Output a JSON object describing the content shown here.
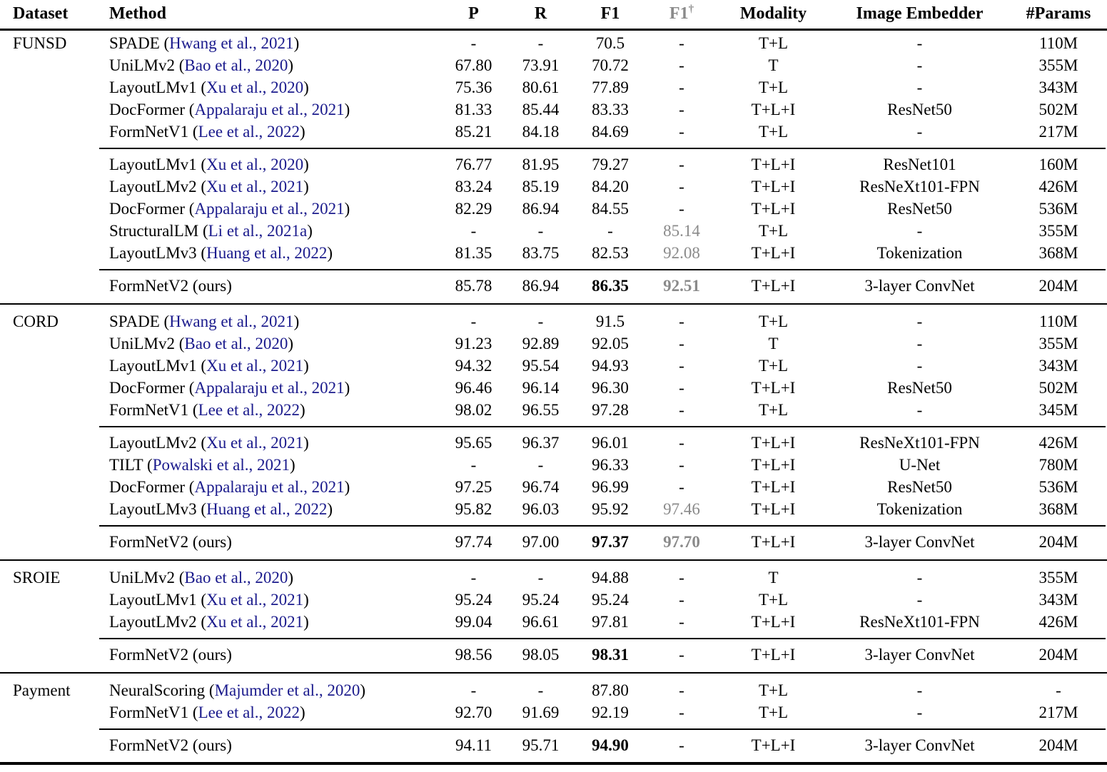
{
  "colors": {
    "citation_blue": "#1a1a8c",
    "muted_gray": "#8a8a8a",
    "text_black": "#000000",
    "background": "#ffffff"
  },
  "header": {
    "dataset": "Dataset",
    "method": "Method",
    "p": "P",
    "r": "R",
    "f1": "F1",
    "f1_dagger_base": "F1",
    "f1_dagger_sup": "†",
    "modality": "Modality",
    "image_embedder": "Image Embedder",
    "params": "#Params"
  },
  "sections": [
    {
      "dataset": "FUNSD",
      "groups": [
        {
          "rows": [
            {
              "method": "SPADE",
              "cite": "Hwang et al., 2021",
              "p": "-",
              "r": "-",
              "f1": "70.5",
              "f1d": "-",
              "modality": "T+L",
              "embedder": "-",
              "params": "110M"
            },
            {
              "method": "UniLMv2",
              "cite": "Bao et al., 2020",
              "p": "67.80",
              "r": "73.91",
              "f1": "70.72",
              "f1d": "-",
              "modality": "T",
              "embedder": "-",
              "params": "355M"
            },
            {
              "method": "LayoutLMv1",
              "cite": "Xu et al., 2020",
              "p": "75.36",
              "r": "80.61",
              "f1": "77.89",
              "f1d": "-",
              "modality": "T+L",
              "embedder": "-",
              "params": "343M"
            },
            {
              "method": "DocFormer",
              "cite": "Appalaraju et al., 2021",
              "p": "81.33",
              "r": "85.44",
              "f1": "83.33",
              "f1d": "-",
              "modality": "T+L+I",
              "embedder": "ResNet50",
              "params": "502M"
            },
            {
              "method": "FormNetV1",
              "cite": "Lee et al., 2022",
              "p": "85.21",
              "r": "84.18",
              "f1": "84.69",
              "f1d": "-",
              "modality": "T+L",
              "embedder": "-",
              "params": "217M"
            }
          ]
        },
        {
          "rows": [
            {
              "method": "LayoutLMv1",
              "cite": "Xu et al., 2020",
              "p": "76.77",
              "r": "81.95",
              "f1": "79.27",
              "f1d": "-",
              "modality": "T+L+I",
              "embedder": "ResNet101",
              "params": "160M"
            },
            {
              "method": "LayoutLMv2",
              "cite": "Xu et al., 2021",
              "p": "83.24",
              "r": "85.19",
              "f1": "84.20",
              "f1d": "-",
              "modality": "T+L+I",
              "embedder": "ResNeXt101-FPN",
              "params": "426M"
            },
            {
              "method": "DocFormer",
              "cite": "Appalaraju et al., 2021",
              "p": "82.29",
              "r": "86.94",
              "f1": "84.55",
              "f1d": "-",
              "modality": "T+L+I",
              "embedder": "ResNet50",
              "params": "536M"
            },
            {
              "method": "StructuralLM",
              "cite": "Li et al., 2021a",
              "p": "-",
              "r": "-",
              "f1": "-",
              "f1d": "85.14",
              "f1d_gray": true,
              "modality": "T+L",
              "embedder": "-",
              "params": "355M"
            },
            {
              "method": "LayoutLMv3",
              "cite": "Huang et al., 2022",
              "p": "81.35",
              "r": "83.75",
              "f1": "82.53",
              "f1d": "92.08",
              "f1d_gray": true,
              "modality": "T+L+I",
              "embedder": "Tokenization",
              "params": "368M"
            }
          ]
        },
        {
          "rows": [
            {
              "method": "FormNetV2",
              "note": "ours",
              "p": "85.78",
              "r": "86.94",
              "f1": "86.35",
              "f1_bold": true,
              "f1d": "92.51",
              "f1d_gray": true,
              "f1d_bold": true,
              "modality": "T+L+I",
              "embedder": "3-layer ConvNet",
              "params": "204M"
            }
          ]
        }
      ]
    },
    {
      "dataset": "CORD",
      "groups": [
        {
          "rows": [
            {
              "method": "SPADE",
              "cite": "Hwang et al., 2021",
              "p": "-",
              "r": "-",
              "f1": "91.5",
              "f1d": "-",
              "modality": "T+L",
              "embedder": "-",
              "params": "110M"
            },
            {
              "method": "UniLMv2",
              "cite": "Bao et al., 2020",
              "p": "91.23",
              "r": "92.89",
              "f1": "92.05",
              "f1d": "-",
              "modality": "T",
              "embedder": "-",
              "params": "355M"
            },
            {
              "method": "LayoutLMv1",
              "cite": "Xu et al., 2021",
              "p": "94.32",
              "r": "95.54",
              "f1": "94.93",
              "f1d": "-",
              "modality": "T+L",
              "embedder": "-",
              "params": "343M"
            },
            {
              "method": "DocFormer",
              "cite": "Appalaraju et al., 2021",
              "p": "96.46",
              "r": "96.14",
              "f1": "96.30",
              "f1d": "-",
              "modality": "T+L+I",
              "embedder": "ResNet50",
              "params": "502M"
            },
            {
              "method": "FormNetV1",
              "cite": "Lee et al., 2022",
              "p": "98.02",
              "r": "96.55",
              "f1": "97.28",
              "f1d": "-",
              "modality": "T+L",
              "embedder": "-",
              "params": "345M"
            }
          ]
        },
        {
          "rows": [
            {
              "method": "LayoutLMv2",
              "cite": "Xu et al., 2021",
              "p": "95.65",
              "r": "96.37",
              "f1": "96.01",
              "f1d": "-",
              "modality": "T+L+I",
              "embedder": "ResNeXt101-FPN",
              "params": "426M"
            },
            {
              "method": "TILT",
              "cite": "Powalski et al., 2021",
              "p": "-",
              "r": "-",
              "f1": "96.33",
              "f1d": "-",
              "modality": "T+L+I",
              "embedder": "U-Net",
              "params": "780M"
            },
            {
              "method": "DocFormer",
              "cite": "Appalaraju et al., 2021",
              "p": "97.25",
              "r": "96.74",
              "f1": "96.99",
              "f1d": "-",
              "modality": "T+L+I",
              "embedder": "ResNet50",
              "params": "536M"
            },
            {
              "method": "LayoutLMv3",
              "cite": "Huang et al., 2022",
              "p": "95.82",
              "r": "96.03",
              "f1": "95.92",
              "f1d": "97.46",
              "f1d_gray": true,
              "modality": "T+L+I",
              "embedder": "Tokenization",
              "params": "368M"
            }
          ]
        },
        {
          "rows": [
            {
              "method": "FormNetV2",
              "note": "ours",
              "p": "97.74",
              "r": "97.00",
              "f1": "97.37",
              "f1_bold": true,
              "f1d": "97.70",
              "f1d_gray": true,
              "f1d_bold": true,
              "modality": "T+L+I",
              "embedder": "3-layer ConvNet",
              "params": "204M"
            }
          ]
        }
      ]
    },
    {
      "dataset": "SROIE",
      "groups": [
        {
          "rows": [
            {
              "method": "UniLMv2",
              "cite": "Bao et al., 2020",
              "p": "-",
              "r": "-",
              "f1": "94.88",
              "f1d": "-",
              "modality": "T",
              "embedder": "-",
              "params": "355M"
            },
            {
              "method": "LayoutLMv1",
              "cite": "Xu et al., 2021",
              "p": "95.24",
              "r": "95.24",
              "f1": "95.24",
              "f1d": "-",
              "modality": "T+L",
              "embedder": "-",
              "params": "343M"
            },
            {
              "method": "LayoutLMv2",
              "cite": "Xu et al., 2021",
              "p": "99.04",
              "r": "96.61",
              "f1": "97.81",
              "f1d": "-",
              "modality": "T+L+I",
              "embedder": "ResNeXt101-FPN",
              "params": "426M"
            }
          ]
        },
        {
          "rows": [
            {
              "method": "FormNetV2",
              "note": "ours",
              "p": "98.56",
              "r": "98.05",
              "f1": "98.31",
              "f1_bold": true,
              "f1d": "-",
              "modality": "T+L+I",
              "embedder": "3-layer ConvNet",
              "params": "204M"
            }
          ]
        }
      ]
    },
    {
      "dataset": "Payment",
      "groups": [
        {
          "rows": [
            {
              "method": "NeuralScoring",
              "cite": "Majumder et al., 2020",
              "p": "-",
              "r": "-",
              "f1": "87.80",
              "f1d": "-",
              "modality": "T+L",
              "embedder": "-",
              "params": "-"
            },
            {
              "method": "FormNetV1",
              "cite": "Lee et al., 2022",
              "p": "92.70",
              "r": "91.69",
              "f1": "92.19",
              "f1d": "-",
              "modality": "T+L",
              "embedder": "-",
              "params": "217M"
            }
          ]
        },
        {
          "rows": [
            {
              "method": "FormNetV2",
              "note": "ours",
              "p": "94.11",
              "r": "95.71",
              "f1": "94.90",
              "f1_bold": true,
              "f1d": "-",
              "modality": "T+L+I",
              "embedder": "3-layer ConvNet",
              "params": "204M"
            }
          ]
        }
      ]
    }
  ]
}
